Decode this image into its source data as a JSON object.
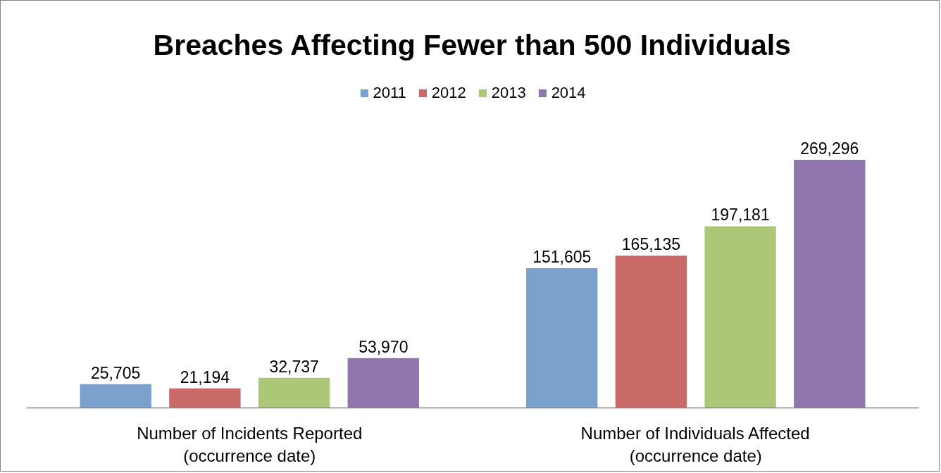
{
  "chart_data": {
    "type": "bar",
    "title": "Breaches Affecting Fewer than 500 Individuals",
    "categories": [
      "Number of Incidents Reported\n(occurrence date)",
      "Number of Individuals Affected\n(occurrence date)"
    ],
    "series": [
      {
        "name": "2011",
        "color": "#7ba1cd",
        "values": [
          25705,
          151605
        ],
        "value_labels": [
          "25,705",
          "151,605"
        ]
      },
      {
        "name": "2012",
        "color": "#ca6a68",
        "values": [
          21194,
          165135
        ],
        "value_labels": [
          "21,194",
          "165,135"
        ]
      },
      {
        "name": "2013",
        "color": "#adc778",
        "values": [
          32737,
          197181
        ],
        "value_labels": [
          "32,737",
          "197,181"
        ]
      },
      {
        "name": "2014",
        "color": "#8f76ac",
        "values": [
          53970,
          269296
        ],
        "value_labels": [
          "53,970",
          "269,296"
        ]
      }
    ],
    "legend": "top",
    "grid": false,
    "tick_labels": "x"
  }
}
